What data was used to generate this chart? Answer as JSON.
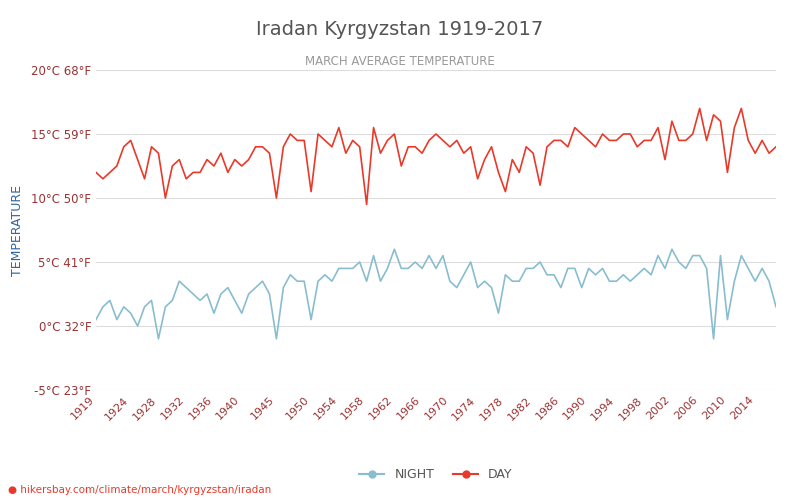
{
  "title": "Iradan Kyrgyzstan 1919-2017",
  "subtitle": "MARCH AVERAGE TEMPERATURE",
  "ylabel": "TEMPERATURE",
  "url": "hikersbay.com/climate/march/kyrgyzstan/iradan",
  "years": [
    1919,
    1920,
    1921,
    1922,
    1923,
    1924,
    1925,
    1926,
    1927,
    1928,
    1929,
    1930,
    1931,
    1932,
    1933,
    1934,
    1935,
    1936,
    1937,
    1938,
    1939,
    1940,
    1941,
    1942,
    1943,
    1944,
    1945,
    1946,
    1947,
    1948,
    1949,
    1950,
    1951,
    1952,
    1953,
    1954,
    1955,
    1956,
    1957,
    1958,
    1959,
    1960,
    1961,
    1962,
    1963,
    1964,
    1965,
    1966,
    1967,
    1968,
    1969,
    1970,
    1971,
    1972,
    1973,
    1974,
    1975,
    1976,
    1977,
    1978,
    1979,
    1980,
    1981,
    1982,
    1983,
    1984,
    1985,
    1986,
    1987,
    1988,
    1989,
    1990,
    1991,
    1992,
    1993,
    1994,
    1995,
    1996,
    1997,
    1998,
    1999,
    2000,
    2001,
    2002,
    2003,
    2004,
    2005,
    2006,
    2007,
    2008,
    2009,
    2010,
    2011,
    2012,
    2013,
    2014,
    2015,
    2016,
    2017
  ],
  "day_temps": [
    12.0,
    11.5,
    12.0,
    12.5,
    14.0,
    14.5,
    13.0,
    11.5,
    14.0,
    13.5,
    10.0,
    12.5,
    13.0,
    11.5,
    12.0,
    12.0,
    13.0,
    12.5,
    13.5,
    12.0,
    13.0,
    12.5,
    13.0,
    14.0,
    14.0,
    13.5,
    10.0,
    14.0,
    15.0,
    14.5,
    14.5,
    10.5,
    15.0,
    14.5,
    14.0,
    15.5,
    13.5,
    14.5,
    14.0,
    9.5,
    15.5,
    13.5,
    14.5,
    15.0,
    12.5,
    14.0,
    14.0,
    13.5,
    14.5,
    15.0,
    14.5,
    14.0,
    14.5,
    13.5,
    14.0,
    11.5,
    13.0,
    14.0,
    12.0,
    10.5,
    13.0,
    12.0,
    14.0,
    13.5,
    11.0,
    14.0,
    14.5,
    14.5,
    14.0,
    15.5,
    15.0,
    14.5,
    14.0,
    15.0,
    14.5,
    14.5,
    15.0,
    15.0,
    14.0,
    14.5,
    14.5,
    15.5,
    13.0,
    16.0,
    14.5,
    14.5,
    15.0,
    17.0,
    14.5,
    16.5,
    16.0,
    12.0,
    15.5,
    17.0,
    14.5,
    13.5,
    14.5,
    13.5,
    14.0
  ],
  "night_temps": [
    0.5,
    1.5,
    2.0,
    0.5,
    1.5,
    1.0,
    0.0,
    1.5,
    2.0,
    -1.0,
    1.5,
    2.0,
    3.5,
    3.0,
    2.5,
    2.0,
    2.5,
    1.0,
    2.5,
    3.0,
    2.0,
    1.0,
    2.5,
    3.0,
    3.5,
    2.5,
    -1.0,
    3.0,
    4.0,
    3.5,
    3.5,
    0.5,
    3.5,
    4.0,
    3.5,
    4.5,
    4.5,
    4.5,
    5.0,
    3.5,
    5.5,
    3.5,
    4.5,
    6.0,
    4.5,
    4.5,
    5.0,
    4.5,
    5.5,
    4.5,
    5.5,
    3.5,
    3.0,
    4.0,
    5.0,
    3.0,
    3.5,
    3.0,
    1.0,
    4.0,
    3.5,
    3.5,
    4.5,
    4.5,
    5.0,
    4.0,
    4.0,
    3.0,
    4.5,
    4.5,
    3.0,
    4.5,
    4.0,
    4.5,
    3.5,
    3.5,
    4.0,
    3.5,
    4.0,
    4.5,
    4.0,
    5.5,
    4.5,
    6.0,
    5.0,
    4.5,
    5.5,
    5.5,
    4.5,
    -1.0,
    5.5,
    0.5,
    3.5,
    5.5,
    4.5,
    3.5,
    4.5,
    3.5,
    1.5
  ],
  "ylim": [
    -5,
    20
  ],
  "yticks_c": [
    -5,
    0,
    5,
    10,
    15,
    20
  ],
  "yticks_labels": [
    "-5°C 23°F",
    "0°C 32°F",
    "5°C 41°F",
    "10°C 50°F",
    "15°C 59°F",
    "20°C 68°F"
  ],
  "xtick_years": [
    1919,
    1924,
    1928,
    1932,
    1936,
    1940,
    1945,
    1950,
    1954,
    1958,
    1962,
    1966,
    1970,
    1974,
    1978,
    1982,
    1986,
    1990,
    1994,
    1998,
    2002,
    2006,
    2010,
    2014
  ],
  "day_color": "#e8392a",
  "night_color": "#88bdd0",
  "title_color": "#555555",
  "subtitle_color": "#999999",
  "ylabel_color": "#336699",
  "ytick_color": "#993333",
  "xtick_color": "#993333",
  "grid_color": "#dddddd",
  "background_color": "#ffffff",
  "legend_night_color": "#88bdd0",
  "legend_day_color": "#e8392a",
  "url_color": "#e8392a",
  "figsize": [
    8.0,
    5.0
  ],
  "dpi": 100
}
